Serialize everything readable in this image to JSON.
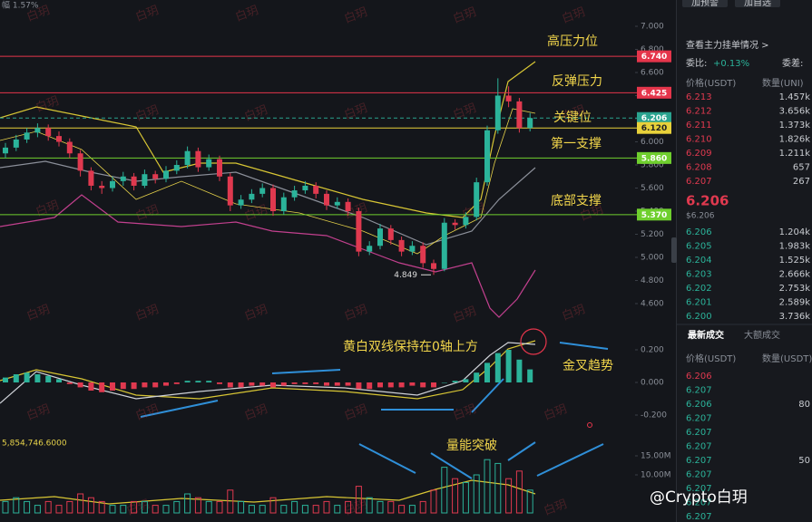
{
  "header": {
    "change": "幅 1.57%"
  },
  "watermark": "白玥",
  "signature": "@Crypto白玥",
  "chart": {
    "ylim": [
      4.6,
      7.0
    ],
    "yticks": [
      {
        "value": 4.6,
        "label": "4.600"
      },
      {
        "value": 4.8,
        "label": "4.800"
      },
      {
        "value": 5.0,
        "label": "5.000"
      },
      {
        "value": 5.2,
        "label": "5.200"
      },
      {
        "value": 5.4,
        "label": "5.400"
      },
      {
        "value": 5.6,
        "label": "5.600"
      },
      {
        "value": 5.8,
        "label": "5.800"
      },
      {
        "value": 6.0,
        "label": "6.000"
      },
      {
        "value": 6.2,
        "label": "6.200"
      },
      {
        "value": 6.4,
        "label": "6.400"
      },
      {
        "value": 6.6,
        "label": "6.600"
      },
      {
        "value": 6.8,
        "label": "6.800"
      },
      {
        "value": 7.0,
        "label": "7.000"
      }
    ],
    "levels": [
      {
        "value": 6.74,
        "label": "6.740",
        "note": "高压力位",
        "color": "#e5354b"
      },
      {
        "value": 6.425,
        "label": "6.425",
        "note": "反弹压力",
        "color": "#e5354b"
      },
      {
        "value": 6.206,
        "label": "6.206",
        "note": "关键位",
        "color": "#2aa38f"
      },
      {
        "value": 6.12,
        "label": "6.120",
        "note": "第一支撑",
        "color": "#e8d13a"
      },
      {
        "value": 5.86,
        "label": "5.860",
        "color": "#6fcf2e"
      },
      {
        "value": 5.37,
        "label": "5.370",
        "note": "底部支撑",
        "color": "#6fcf2e"
      }
    ],
    "low": {
      "value": 4.849,
      "label": "4.849"
    },
    "candles": [
      [
        5.9,
        5.99,
        5.86,
        5.95
      ],
      [
        5.95,
        6.06,
        5.92,
        6.02
      ],
      [
        6.02,
        6.12,
        5.99,
        6.08
      ],
      [
        6.08,
        6.16,
        6.04,
        6.12
      ],
      [
        6.12,
        6.15,
        6.01,
        6.05
      ],
      [
        6.05,
        6.09,
        5.96,
        6.0
      ],
      [
        6.0,
        6.03,
        5.86,
        5.9
      ],
      [
        5.9,
        5.93,
        5.7,
        5.75
      ],
      [
        5.75,
        5.78,
        5.58,
        5.62
      ],
      [
        5.62,
        5.66,
        5.55,
        5.6
      ],
      [
        5.6,
        5.7,
        5.57,
        5.66
      ],
      [
        5.66,
        5.74,
        5.62,
        5.7
      ],
      [
        5.7,
        5.73,
        5.58,
        5.62
      ],
      [
        5.62,
        5.76,
        5.6,
        5.72
      ],
      [
        5.72,
        5.75,
        5.64,
        5.68
      ],
      [
        5.68,
        5.79,
        5.65,
        5.75
      ],
      [
        5.75,
        5.84,
        5.72,
        5.8
      ],
      [
        5.8,
        5.96,
        5.77,
        5.92
      ],
      [
        5.92,
        5.95,
        5.74,
        5.78
      ],
      [
        5.78,
        5.89,
        5.75,
        5.85
      ],
      [
        5.85,
        5.88,
        5.66,
        5.7
      ],
      [
        5.7,
        5.73,
        5.4,
        5.45
      ],
      [
        5.45,
        5.54,
        5.42,
        5.5
      ],
      [
        5.5,
        5.59,
        5.47,
        5.55
      ],
      [
        5.55,
        5.64,
        5.52,
        5.6
      ],
      [
        5.6,
        5.63,
        5.36,
        5.4
      ],
      [
        5.4,
        5.56,
        5.37,
        5.52
      ],
      [
        5.52,
        5.62,
        5.49,
        5.58
      ],
      [
        5.58,
        5.66,
        5.55,
        5.62
      ],
      [
        5.62,
        5.65,
        5.51,
        5.55
      ],
      [
        5.55,
        5.58,
        5.41,
        5.45
      ],
      [
        5.45,
        5.52,
        5.42,
        5.48
      ],
      [
        5.48,
        5.51,
        5.36,
        5.4
      ],
      [
        5.4,
        5.43,
        5.01,
        5.05
      ],
      [
        5.05,
        5.14,
        5.02,
        5.1
      ],
      [
        5.1,
        5.29,
        5.07,
        5.25
      ],
      [
        5.25,
        5.28,
        5.11,
        5.15
      ],
      [
        5.15,
        5.18,
        5.01,
        5.05
      ],
      [
        5.05,
        5.14,
        5.02,
        5.1
      ],
      [
        5.1,
        5.13,
        4.91,
        4.95
      ],
      [
        4.95,
        4.98,
        4.849,
        4.9
      ],
      [
        4.9,
        5.34,
        4.88,
        5.3
      ],
      [
        5.3,
        5.33,
        5.24,
        5.28
      ],
      [
        5.28,
        5.39,
        5.25,
        5.35
      ],
      [
        5.35,
        5.69,
        5.32,
        5.65
      ],
      [
        5.65,
        6.14,
        5.62,
        6.1
      ],
      [
        6.1,
        6.55,
        6.07,
        6.4
      ],
      [
        6.4,
        6.48,
        6.3,
        6.35
      ],
      [
        6.35,
        6.38,
        6.08,
        6.12
      ],
      [
        6.12,
        6.25,
        6.09,
        6.206
      ]
    ]
  },
  "macd": {
    "ylim": [
      -0.2,
      0.2
    ],
    "yticks": [
      {
        "value": -0.2,
        "label": "-0.200"
      },
      {
        "value": 0,
        "label": "0.000"
      },
      {
        "value": 0.2,
        "label": "0.200"
      }
    ],
    "note": "黄白双线保持在0轴上方",
    "note2": "金叉趋势",
    "values": [
      0.03,
      0.05,
      0.06,
      0.05,
      0.04,
      0.02,
      -0.01,
      -0.03,
      -0.05,
      -0.06,
      -0.05,
      -0.04,
      -0.04,
      -0.03,
      -0.03,
      -0.02,
      -0.01,
      0.01,
      0.01,
      0.01,
      -0.01,
      -0.03,
      -0.03,
      -0.02,
      -0.02,
      -0.03,
      -0.02,
      -0.01,
      -0.01,
      -0.01,
      -0.02,
      -0.02,
      -0.02,
      -0.04,
      -0.04,
      -0.03,
      -0.03,
      -0.03,
      -0.02,
      -0.03,
      -0.03,
      0.0,
      0.01,
      0.02,
      0.06,
      0.12,
      0.18,
      0.2,
      0.14,
      0.08
    ]
  },
  "volume": {
    "ylim": [
      0,
      15
    ],
    "yticks": [
      {
        "value": 10,
        "label": "10.00M"
      },
      {
        "value": 15,
        "label": "15.00M"
      }
    ],
    "current": "5,854,746.6000",
    "note": "量能突破",
    "values": [
      3,
      4,
      3,
      2,
      3,
      2,
      3,
      5,
      4,
      3,
      2,
      2,
      3,
      3,
      2,
      2,
      3,
      5,
      4,
      3,
      3,
      6,
      3,
      2,
      2,
      4,
      2,
      3,
      2,
      2,
      3,
      2,
      3,
      7,
      4,
      3,
      3,
      2,
      2,
      3,
      6,
      12,
      9,
      8,
      10,
      14,
      13,
      9,
      11,
      6
    ]
  },
  "panel": {
    "buttons": [
      "加预警",
      "加自选"
    ],
    "main_orders": "查看主力挂单情况 >",
    "ratio_label": "委比:",
    "ratio": "+0.13%",
    "diff_label": "委差:",
    "book_headers": [
      "价格(USDT)",
      "数量(UNI)"
    ],
    "asks": [
      [
        "6.213",
        "1.457k"
      ],
      [
        "6.212",
        "3.656k"
      ],
      [
        "6.211",
        "1.373k"
      ],
      [
        "6.210",
        "1.826k"
      ],
      [
        "6.209",
        "1.211k"
      ],
      [
        "6.208",
        "657"
      ],
      [
        "6.207",
        "267"
      ]
    ],
    "last": "6.206",
    "last_usd": "$6.206",
    "bids": [
      [
        "6.206",
        "1.204k"
      ],
      [
        "6.205",
        "1.983k"
      ],
      [
        "6.204",
        "1.525k"
      ],
      [
        "6.203",
        "2.666k"
      ],
      [
        "6.202",
        "2.753k"
      ],
      [
        "6.201",
        "2.589k"
      ],
      [
        "6.200",
        "3.736k"
      ]
    ],
    "tabs": [
      "最新成交",
      "大额成交"
    ],
    "trade_headers": [
      "价格(USDT)",
      "数量(USDT)"
    ],
    "trades": [
      [
        "6.206",
        ""
      ],
      [
        "6.207",
        ""
      ],
      [
        "6.206",
        "80"
      ],
      [
        "6.207",
        ""
      ],
      [
        "6.207",
        ""
      ],
      [
        "6.207",
        ""
      ],
      [
        "6.207",
        "50"
      ],
      [
        "6.207",
        ""
      ],
      [
        "6.207",
        ""
      ],
      [
        "6.207",
        ""
      ],
      [
        "6.207",
        ""
      ]
    ]
  }
}
